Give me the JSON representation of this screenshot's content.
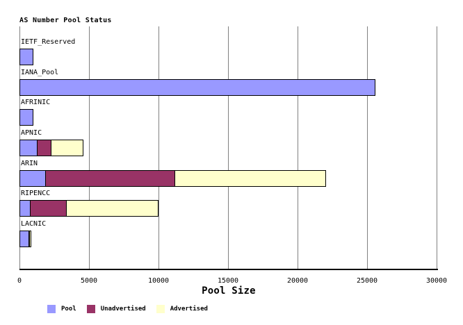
{
  "title": "AS Number Pool Status",
  "xlabel": "Pool Size",
  "colors": {
    "pool": "#9999ff",
    "unadvertised": "#993366",
    "advertised": "#ffffcc",
    "gridline": "#808080",
    "axis": "#000000",
    "background": "#ffffff",
    "text": "#000000"
  },
  "chart_data": {
    "type": "bar",
    "orientation": "horizontal",
    "stacked": true,
    "title": "AS Number Pool Status",
    "xlabel": "Pool Size",
    "ylabel": "",
    "xlim": [
      0,
      30000
    ],
    "xticks": [
      0,
      5000,
      10000,
      15000,
      20000,
      25000,
      30000
    ],
    "xtick_labels": [
      "0",
      "5000",
      "10000",
      "15000",
      "20000",
      "25000",
      "30000"
    ],
    "grid": "vertical-only",
    "legend_position": "bottom",
    "categories": [
      "IETF_Reserved",
      "IANA_Pool",
      "AFRINIC",
      "APNIC",
      "ARIN",
      "RIPENCC",
      "LACNIC"
    ],
    "series": [
      {
        "name": "Pool",
        "color": "#9999ff",
        "values": [
          1000,
          25600,
          1000,
          1300,
          1900,
          800,
          700
        ]
      },
      {
        "name": "Unadvertised",
        "color": "#993366",
        "values": [
          0,
          0,
          0,
          1050,
          9350,
          2650,
          100
        ]
      },
      {
        "name": "Advertised",
        "color": "#ffffcc",
        "values": [
          0,
          0,
          0,
          2350,
          10900,
          6650,
          150
        ]
      }
    ],
    "totals": [
      1000,
      25600,
      1000,
      4700,
      22150,
      10100,
      950
    ]
  },
  "legend": {
    "items": [
      "Pool",
      "Unadvertised",
      "Advertised"
    ]
  }
}
